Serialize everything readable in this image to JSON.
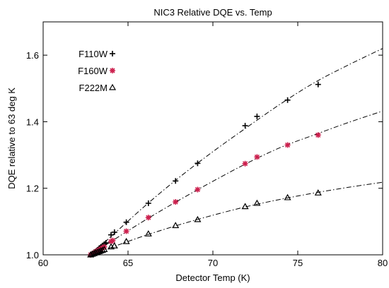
{
  "chart_data": {
    "type": "scatter",
    "title": "NIC3 Relative DQE vs. Temp",
    "xlabel": "Detector Temp (K)",
    "ylabel": "DQE relative to 63 deg K",
    "xlim": [
      60,
      80
    ],
    "ylim": [
      1.0,
      1.7
    ],
    "x_ticks": [
      60,
      65,
      70,
      75,
      80
    ],
    "x_tick_labels": [
      "60",
      "65",
      "70",
      "75",
      "80"
    ],
    "y_ticks": [
      1.0,
      1.2,
      1.4,
      1.6
    ],
    "y_tick_labels": [
      "1.0",
      "1.2",
      "1.4",
      "1.6"
    ],
    "legend_position": "top-left",
    "series": [
      {
        "name": "F110W",
        "marker": "plus",
        "color": "#000000",
        "x": [
          62.8,
          62.9,
          63.0,
          63.1,
          63.2,
          63.3,
          63.4,
          63.5,
          63.6,
          63.7,
          64.0,
          64.2,
          64.9,
          66.2,
          67.8,
          69.1,
          71.9,
          72.6,
          74.4,
          76.2
        ],
        "y": [
          1.0,
          1.004,
          1.008,
          1.011,
          1.015,
          1.02,
          1.024,
          1.028,
          1.032,
          1.036,
          1.06,
          1.068,
          1.098,
          1.155,
          1.222,
          1.275,
          1.388,
          1.416,
          1.465,
          1.512
        ]
      },
      {
        "name": "F160W",
        "marker": "asterisk",
        "color": "#cc1f4d",
        "x": [
          62.8,
          62.9,
          63.0,
          63.1,
          63.2,
          63.3,
          63.4,
          63.5,
          63.6,
          64.0,
          64.1,
          64.9,
          66.2,
          67.8,
          69.1,
          71.9,
          72.6,
          74.4,
          76.2
        ],
        "y": [
          1.0,
          1.003,
          1.006,
          1.009,
          1.012,
          1.015,
          1.018,
          1.021,
          1.024,
          1.04,
          1.043,
          1.071,
          1.112,
          1.159,
          1.196,
          1.274,
          1.294,
          1.33,
          1.36
        ]
      },
      {
        "name": "F222M",
        "marker": "triangle",
        "color": "#000000",
        "x": [
          62.8,
          62.9,
          63.0,
          63.1,
          63.2,
          63.3,
          63.4,
          63.5,
          63.6,
          64.0,
          64.2,
          64.9,
          66.2,
          67.8,
          69.1,
          71.9,
          72.6,
          74.4,
          76.2
        ],
        "y": [
          1.0,
          1.002,
          1.004,
          1.006,
          1.008,
          1.01,
          1.012,
          1.014,
          1.016,
          1.024,
          1.027,
          1.04,
          1.063,
          1.088,
          1.106,
          1.145,
          1.155,
          1.172,
          1.186
        ]
      }
    ],
    "fits": [
      {
        "series": "F110W",
        "style": "dash-dot",
        "x": [
          62.7,
          64,
          66,
          68,
          70,
          72,
          74,
          76,
          78,
          80
        ],
        "y": [
          0.997,
          1.055,
          1.147,
          1.232,
          1.31,
          1.383,
          1.454,
          1.518,
          1.571,
          1.62
        ]
      },
      {
        "series": "F160W",
        "style": "dash-dot",
        "x": [
          62.7,
          64,
          66,
          68,
          70,
          72,
          74,
          76,
          78,
          80
        ],
        "y": [
          0.998,
          1.04,
          1.104,
          1.164,
          1.221,
          1.275,
          1.323,
          1.361,
          1.398,
          1.432
        ]
      },
      {
        "series": "F222M",
        "style": "dash-dot",
        "x": [
          62.7,
          64,
          66,
          68,
          70,
          72,
          74,
          76,
          78,
          80
        ],
        "y": [
          0.999,
          1.022,
          1.058,
          1.09,
          1.119,
          1.145,
          1.167,
          1.186,
          1.203,
          1.218
        ]
      }
    ]
  }
}
